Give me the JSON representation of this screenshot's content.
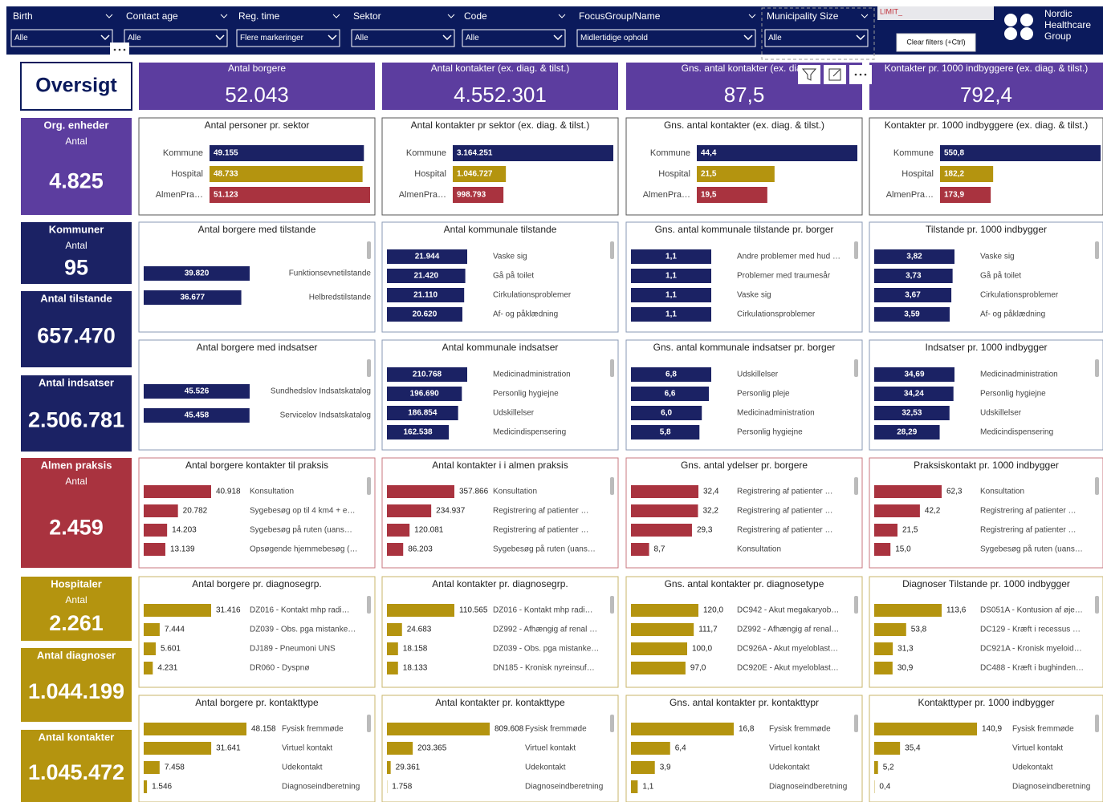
{
  "filters": [
    {
      "label": "Birth",
      "value": "Alle"
    },
    {
      "label": "Contact age",
      "value": "Alle"
    },
    {
      "label": "Reg. time",
      "value": "Flere markeringer"
    },
    {
      "label": "Sektor",
      "value": "Alle"
    },
    {
      "label": "Code",
      "value": "Alle"
    },
    {
      "label": "FocusGroup/Name",
      "value": "Midlertidige ophold"
    },
    {
      "label": "Municipality Size",
      "value": "Alle"
    }
  ],
  "limit_label": "LIMIT_",
  "clear_button": "Clear filters (+Ctrl)",
  "logo": [
    "Nordic",
    "Healthcare",
    "Group"
  ],
  "overview_title": "Oversigt",
  "kpis": [
    {
      "title": "Antal borgere",
      "value": "52.043"
    },
    {
      "title": "Antal kontakter (ex. diag. & tilst.)",
      "value": "4.552.301"
    },
    {
      "title": "Gns. antal kontakter (ex. diag",
      "value": "87,5"
    },
    {
      "title": "Kontakter pr. 1000 indbyggere (ex. diag. & tilst.)",
      "value": "792,4"
    }
  ],
  "side_cards": [
    {
      "title": "Org. enheder",
      "subtitle": "Antal",
      "value": "4.825"
    },
    {
      "title": "Kommuner",
      "subtitle": "Antal",
      "value": "95"
    },
    {
      "title": "Antal tilstande",
      "value": "657.470"
    },
    {
      "title": "Antal indsatser",
      "value": "2.506.781"
    },
    {
      "title": "Almen praksis",
      "subtitle": "Antal",
      "value": "2.459"
    },
    {
      "title": "Hospitaler",
      "subtitle": "Antal",
      "value": "2.261"
    },
    {
      "title": "Antal diagnoser",
      "value": "1.044.199"
    },
    {
      "title": "Antal kontakter",
      "value": "1.045.472"
    }
  ],
  "chart_data": [
    {
      "type": "bar",
      "title": "Antal personer pr. sektor",
      "categories": [
        "Kommune",
        "Hospital",
        "AlmenPra…"
      ],
      "values": [
        49155,
        48733,
        51123
      ],
      "value_labels": [
        "49.155",
        "48.733",
        "51.123"
      ],
      "colors": [
        "#1b2264",
        "#b4940f",
        "#a9333f"
      ]
    },
    {
      "type": "bar",
      "title": "Antal kontakter pr sektor (ex. diag. & tilst.)",
      "categories": [
        "Kommune",
        "Hospital",
        "AlmenPra…"
      ],
      "values": [
        3164251,
        1046727,
        998793
      ],
      "value_labels": [
        "3.164.251",
        "1.046.727",
        "998.793"
      ],
      "colors": [
        "#1b2264",
        "#b4940f",
        "#a9333f"
      ]
    },
    {
      "type": "bar",
      "title": "Gns. antal kontakter (ex. diag. & tilst.)",
      "categories": [
        "Kommune",
        "Hospital",
        "AlmenPra…"
      ],
      "values": [
        44.4,
        21.5,
        19.5
      ],
      "value_labels": [
        "44,4",
        "21,5",
        "19,5"
      ],
      "colors": [
        "#1b2264",
        "#b4940f",
        "#a9333f"
      ]
    },
    {
      "type": "bar",
      "title": "Kontakter pr. 1000 indbyggere (ex. diag. & tilst.)",
      "categories": [
        "Kommune",
        "Hospital",
        "AlmenPra…"
      ],
      "values": [
        550.8,
        182.2,
        173.9
      ],
      "value_labels": [
        "550,8",
        "182,2",
        "173,9"
      ],
      "colors": [
        "#1b2264",
        "#b4940f",
        "#a9333f"
      ]
    },
    {
      "type": "bar",
      "title": "Antal borgere med tilstande",
      "categories": [
        "Funktionsevnetilstande",
        "Helbredstilstande"
      ],
      "values": [
        39820,
        36677
      ],
      "value_labels": [
        "39.820",
        "36.677"
      ],
      "color": "#1b2264"
    },
    {
      "type": "bar",
      "title": "Antal kommunale tilstande",
      "categories": [
        "Vaske sig",
        "Gå på toilet",
        "Cirkulationsproblemer",
        "Af- og påklædning"
      ],
      "values": [
        21944,
        21420,
        21110,
        20620
      ],
      "value_labels": [
        "21.944",
        "21.420",
        "21.110",
        "20.620"
      ],
      "color": "#1b2264"
    },
    {
      "type": "bar",
      "title": "Gns. antal kommunale tilstande pr. borger",
      "categories": [
        "Andre problemer med hud …",
        "Problemer med traumesår",
        "Vaske sig",
        "Cirkulationsproblemer"
      ],
      "values": [
        1.1,
        1.1,
        1.1,
        1.1
      ],
      "value_labels": [
        "1,1",
        "1,1",
        "1,1",
        "1,1"
      ],
      "color": "#1b2264"
    },
    {
      "type": "bar",
      "title": "Tilstande pr. 1000 indbygger",
      "categories": [
        "Vaske sig",
        "Gå på toilet",
        "Cirkulationsproblemer",
        "Af- og påklædning"
      ],
      "values": [
        3.82,
        3.73,
        3.67,
        3.59
      ],
      "value_labels": [
        "3,82",
        "3,73",
        "3,67",
        "3,59"
      ],
      "color": "#1b2264"
    },
    {
      "type": "bar",
      "title": "Antal borgere med indsatser",
      "categories": [
        "Sundhedslov Indsatskatalog",
        "Servicelov Indsatskatalog"
      ],
      "values": [
        45526,
        45458
      ],
      "value_labels": [
        "45.526",
        "45.458"
      ],
      "color": "#1b2264"
    },
    {
      "type": "bar",
      "title": "Antal kommunale indsatser",
      "categories": [
        "Medicinadministration",
        "Personlig hygiejne",
        "Udskillelser",
        "Medicindispensering"
      ],
      "values": [
        210768,
        196690,
        186854,
        162538
      ],
      "value_labels": [
        "210.768",
        "196.690",
        "186.854",
        "162.538"
      ],
      "color": "#1b2264"
    },
    {
      "type": "bar",
      "title": "Gns. antal kommunale indsatser pr. borger",
      "categories": [
        "Udskillelser",
        "Personlig pleje",
        "Medicinadministration",
        "Personlig hygiejne"
      ],
      "values": [
        6.8,
        6.6,
        6.0,
        5.8
      ],
      "value_labels": [
        "6,8",
        "6,6",
        "6,0",
        "5,8"
      ],
      "color": "#1b2264"
    },
    {
      "type": "bar",
      "title": "Indsatser pr. 1000 indbygger",
      "categories": [
        "Medicinadministration",
        "Personlig hygiejne",
        "Udskillelser",
        "Medicindispensering"
      ],
      "values": [
        34.69,
        34.24,
        32.53,
        28.29
      ],
      "value_labels": [
        "34,69",
        "34,24",
        "32,53",
        "28,29"
      ],
      "color": "#1b2264"
    },
    {
      "type": "bar",
      "title": "Antal borgere kontakter til praksis",
      "categories": [
        "Konsultation",
        "Sygebesøg op til 4 km4 + e…",
        "Sygebesøg på ruten (uans…",
        "Opsøgende hjemmebesøg (…"
      ],
      "values": [
        40918,
        20782,
        14203,
        13139
      ],
      "value_labels": [
        "40.918",
        "20.782",
        "14.203",
        "13.139"
      ],
      "color": "#a9333f"
    },
    {
      "type": "bar",
      "title": "Antal kontakter i i almen praksis",
      "categories": [
        "Konsultation",
        "Registrering af patienter …",
        "Registrering af patienter …",
        "Sygebesøg på ruten (uans…"
      ],
      "values": [
        357866,
        234937,
        120081,
        86203
      ],
      "value_labels": [
        "357.866",
        "234.937",
        "120.081",
        "86.203"
      ],
      "color": "#a9333f"
    },
    {
      "type": "bar",
      "title": "Gns. antal ydelser pr. borgere",
      "categories": [
        "Registrering af patienter …",
        "Registrering af patienter …",
        "Registrering af patienter …",
        "Konsultation"
      ],
      "values": [
        32.4,
        32.2,
        29.3,
        8.7
      ],
      "value_labels": [
        "32,4",
        "32,2",
        "29,3",
        "8,7"
      ],
      "color": "#a9333f"
    },
    {
      "type": "bar",
      "title": "Praksiskontakt pr. 1000 indbygger",
      "categories": [
        "Konsultation",
        "Registrering af patienter …",
        "Registrering af patienter …",
        "Sygebesøg på ruten (uans…"
      ],
      "values": [
        62.3,
        42.2,
        21.5,
        15.0
      ],
      "value_labels": [
        "62,3",
        "42,2",
        "21,5",
        "15,0"
      ],
      "color": "#a9333f"
    },
    {
      "type": "bar",
      "title": "Antal borgere pr. diagnosegrp.",
      "categories": [
        "DZ016 - Kontakt mhp radi…",
        "DZ039 - Obs. pga mistanke…",
        "DJ189 - Pneumoni UNS",
        "DR060 - Dyspnø"
      ],
      "values": [
        31416,
        7444,
        5601,
        4231
      ],
      "value_labels": [
        "31.416",
        "7.444",
        "5.601",
        "4.231"
      ],
      "color": "#b4940f"
    },
    {
      "type": "bar",
      "title": "Antal kontakter pr. diagnosegrp.",
      "categories": [
        "DZ016 - Kontakt mhp radi…",
        "DZ992 - Afhængig af renal …",
        "DZ039 - Obs. pga mistanke…",
        "DN185 - Kronisk nyreinsuf…"
      ],
      "values": [
        110565,
        24683,
        18158,
        18133
      ],
      "value_labels": [
        "110.565",
        "24.683",
        "18.158",
        "18.133"
      ],
      "color": "#b4940f"
    },
    {
      "type": "bar",
      "title": "Gns. antal kontakter pr. diagnosetype",
      "categories": [
        "DC942 - Akut megakaryob…",
        "DZ992 - Afhængig af renal…",
        "DC926A - Akut myeloblast…",
        "DC920E - Akut myeloblast…"
      ],
      "values": [
        120.0,
        111.7,
        100.0,
        97.0
      ],
      "value_labels": [
        "120,0",
        "111,7",
        "100,0",
        "97,0"
      ],
      "color": "#b4940f"
    },
    {
      "type": "bar",
      "title": "Diagnoser Tilstande pr. 1000 indbygger",
      "categories": [
        "DS051A - Kontusion af øje…",
        "DC129 - Kræft i recessus …",
        "DC921A - Kronisk myeloid…",
        "DC488 - Kræft i bughinden…"
      ],
      "values": [
        113.6,
        53.8,
        31.3,
        30.9
      ],
      "value_labels": [
        "113,6",
        "53,8",
        "31,3",
        "30,9"
      ],
      "color": "#b4940f"
    },
    {
      "type": "bar",
      "title": "Antal borgere pr. kontakttype",
      "categories": [
        "Fysisk fremmøde",
        "Virtuel kontakt",
        "Udekontakt",
        "Diagnoseindberetning"
      ],
      "values": [
        48158,
        31641,
        7458,
        1546
      ],
      "value_labels": [
        "48.158",
        "31.641",
        "7.458",
        "1.546"
      ],
      "color": "#b4940f"
    },
    {
      "type": "bar",
      "title": "Antal kontakter pr. kontakttype",
      "categories": [
        "Fysisk fremmøde",
        "Virtuel kontakt",
        "Udekontakt",
        "Diagnoseindberetning"
      ],
      "values": [
        809608,
        203365,
        29361,
        1758
      ],
      "value_labels": [
        "809.608",
        "203.365",
        "29.361",
        "1.758"
      ],
      "color": "#b4940f"
    },
    {
      "type": "bar",
      "title": "Gns. antal kontakter pr. kontakttypr",
      "categories": [
        "Fysisk fremmøde",
        "Virtuel kontakt",
        "Udekontakt",
        "Diagnoseindberetning"
      ],
      "values": [
        16.8,
        6.4,
        3.9,
        1.1
      ],
      "value_labels": [
        "16,8",
        "6,4",
        "3,9",
        "1,1"
      ],
      "color": "#b4940f"
    },
    {
      "type": "bar",
      "title": "Kontakttyper pr. 1000 indbygger",
      "categories": [
        "Fysisk fremmøde",
        "Virtuel kontakt",
        "Udekontakt",
        "Diagnoseindberetning"
      ],
      "values": [
        140.9,
        35.4,
        5.2,
        0.4
      ],
      "value_labels": [
        "140,9",
        "35,4",
        "5,2",
        "0,4"
      ],
      "color": "#b4940f"
    }
  ]
}
